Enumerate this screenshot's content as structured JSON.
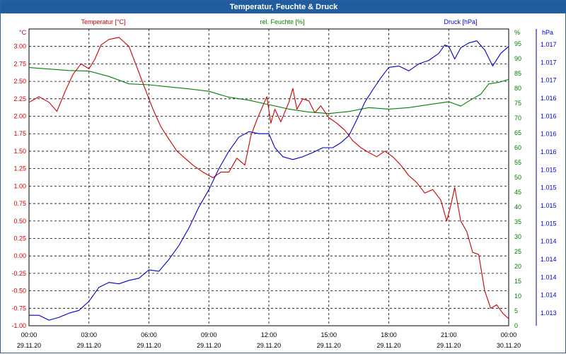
{
  "window": {
    "title": "Temperatur, Feuchte & Druck"
  },
  "chart_data": {
    "type": "line",
    "title": "Temperatur, Feuchte & Druck",
    "grid": true,
    "x_ticks": [
      {
        "time": "00:00",
        "date": "29.11.20"
      },
      {
        "time": "03:00",
        "date": "29.11.20"
      },
      {
        "time": "06:00",
        "date": "29.11.20"
      },
      {
        "time": "09:00",
        "date": "29.11.20"
      },
      {
        "time": "12:00",
        "date": "29.11.20"
      },
      {
        "time": "15:00",
        "date": "29.11.20"
      },
      {
        "time": "18:00",
        "date": "29.11.20"
      },
      {
        "time": "21:00",
        "date": "29.11.20"
      },
      {
        "time": "00:00",
        "date": "30.11.20"
      }
    ],
    "xlim_hours": [
      0,
      24
    ],
    "axes": {
      "left": {
        "unit": "°C",
        "color": "#cc0000",
        "ylim": [
          -1.0,
          3.25
        ],
        "ticks": [
          "-1.00",
          "-0.75",
          "-0.50",
          "-0.25",
          "0.00",
          "0.25",
          "0.50",
          "0.75",
          "1.00",
          "1.25",
          "1.50",
          "1.75",
          "2.00",
          "2.25",
          "2.50",
          "2.75",
          "3.00"
        ]
      },
      "mid": {
        "unit": "%",
        "color": "#008000",
        "ylim": [
          0,
          100
        ],
        "ticks": [
          "0",
          "5",
          "10",
          "15",
          "20",
          "25",
          "30",
          "35",
          "40",
          "45",
          "50",
          "55",
          "60",
          "65",
          "70",
          "75",
          "80",
          "85",
          "90",
          "95",
          "%"
        ]
      },
      "right": {
        "unit": "hPa",
        "color": "#0000cc",
        "ticks": [
          "1.013",
          "1.014",
          "1.014",
          "1.014",
          "1.014",
          "1.015",
          "1.015",
          "1.015",
          "1.015",
          "1.016",
          "1.016",
          "1.016",
          "1.016",
          "1.017",
          "1.017",
          "1.017"
        ]
      }
    },
    "series": [
      {
        "name": "Temperatur [°C]",
        "color": "#cc0000",
        "axis": "left",
        "points": [
          [
            0,
            2.2
          ],
          [
            0.5,
            2.28
          ],
          [
            1,
            2.2
          ],
          [
            1.4,
            2.07
          ],
          [
            1.8,
            2.35
          ],
          [
            2.2,
            2.6
          ],
          [
            2.6,
            2.75
          ],
          [
            3,
            2.68
          ],
          [
            3.3,
            2.82
          ],
          [
            3.6,
            3.02
          ],
          [
            4,
            3.1
          ],
          [
            4.5,
            3.13
          ],
          [
            5,
            3.0
          ],
          [
            5.4,
            2.7
          ],
          [
            5.8,
            2.4
          ],
          [
            6.2,
            2.1
          ],
          [
            6.6,
            1.85
          ],
          [
            7,
            1.67
          ],
          [
            7.4,
            1.5
          ],
          [
            7.8,
            1.4
          ],
          [
            8.2,
            1.3
          ],
          [
            8.7,
            1.2
          ],
          [
            9.2,
            1.12
          ],
          [
            9.6,
            1.2
          ],
          [
            10,
            1.2
          ],
          [
            10.4,
            1.4
          ],
          [
            10.8,
            1.3
          ],
          [
            11.1,
            1.72
          ],
          [
            11.4,
            1.95
          ],
          [
            11.7,
            2.15
          ],
          [
            11.9,
            2.28
          ],
          [
            12.1,
            1.9
          ],
          [
            12.3,
            2.1
          ],
          [
            12.6,
            1.92
          ],
          [
            13,
            2.2
          ],
          [
            13.2,
            2.4
          ],
          [
            13.4,
            2.1
          ],
          [
            13.7,
            2.25
          ],
          [
            14,
            2.22
          ],
          [
            14.3,
            2.05
          ],
          [
            14.6,
            2.15
          ],
          [
            15,
            1.98
          ],
          [
            15.4,
            1.9
          ],
          [
            15.8,
            1.8
          ],
          [
            16.2,
            1.65
          ],
          [
            16.6,
            1.55
          ],
          [
            17,
            1.48
          ],
          [
            17.4,
            1.42
          ],
          [
            17.8,
            1.5
          ],
          [
            18.2,
            1.42
          ],
          [
            18.6,
            1.3
          ],
          [
            19,
            1.15
          ],
          [
            19.4,
            1.05
          ],
          [
            19.8,
            0.9
          ],
          [
            20.2,
            0.95
          ],
          [
            20.6,
            0.8
          ],
          [
            20.9,
            0.5
          ],
          [
            21.1,
            0.72
          ],
          [
            21.3,
            0.98
          ],
          [
            21.6,
            0.5
          ],
          [
            21.9,
            0.35
          ],
          [
            22.2,
            0.05
          ],
          [
            22.5,
            0.02
          ],
          [
            22.8,
            -0.5
          ],
          [
            23.1,
            -0.75
          ],
          [
            23.4,
            -0.7
          ],
          [
            23.7,
            -0.82
          ],
          [
            24,
            -0.9
          ]
        ]
      },
      {
        "name": "rel. Feuchte [%]",
        "color": "#008000",
        "axis": "mid",
        "points": [
          [
            0,
            87
          ],
          [
            1,
            86.5
          ],
          [
            2,
            86
          ],
          [
            3,
            85.8
          ],
          [
            4,
            84
          ],
          [
            5,
            81.5
          ],
          [
            6,
            81.2
          ],
          [
            7,
            80.5
          ],
          [
            8,
            79.8
          ],
          [
            9,
            79
          ],
          [
            10,
            77
          ],
          [
            11,
            76
          ],
          [
            12,
            74.5
          ],
          [
            13,
            73
          ],
          [
            14,
            72
          ],
          [
            15,
            71.5
          ],
          [
            16,
            72.2
          ],
          [
            17,
            73.5
          ],
          [
            18,
            73
          ],
          [
            19,
            73.5
          ],
          [
            20,
            74.5
          ],
          [
            21,
            75.5
          ],
          [
            21.6,
            74
          ],
          [
            22.2,
            76.5
          ],
          [
            22.6,
            78
          ],
          [
            23,
            81.5
          ],
          [
            23.5,
            82
          ],
          [
            24,
            83
          ]
        ]
      },
      {
        "name": "Druck [hPa]",
        "color": "#0000cc",
        "axis": "right",
        "points": [
          [
            0,
            -0.85
          ],
          [
            0.5,
            -0.85
          ],
          [
            1,
            -0.92
          ],
          [
            1.5,
            -0.88
          ],
          [
            2,
            -0.82
          ],
          [
            2.5,
            -0.78
          ],
          [
            3,
            -0.65
          ],
          [
            3.5,
            -0.45
          ],
          [
            4,
            -0.38
          ],
          [
            4.5,
            -0.4
          ],
          [
            5,
            -0.35
          ],
          [
            5.5,
            -0.32
          ],
          [
            6,
            -0.2
          ],
          [
            6.5,
            -0.22
          ],
          [
            7,
            -0.05
          ],
          [
            7.5,
            0.15
          ],
          [
            8,
            0.4
          ],
          [
            8.5,
            0.7
          ],
          [
            9,
            0.95
          ],
          [
            9.5,
            1.25
          ],
          [
            10,
            1.5
          ],
          [
            10.5,
            1.7
          ],
          [
            11,
            1.78
          ],
          [
            11.5,
            1.75
          ],
          [
            12,
            1.75
          ],
          [
            12.3,
            1.55
          ],
          [
            12.7,
            1.42
          ],
          [
            13.2,
            1.38
          ],
          [
            13.7,
            1.42
          ],
          [
            14.2,
            1.48
          ],
          [
            14.7,
            1.55
          ],
          [
            15.2,
            1.55
          ],
          [
            15.6,
            1.62
          ],
          [
            16,
            1.72
          ],
          [
            16.4,
            1.95
          ],
          [
            16.8,
            2.2
          ],
          [
            17.2,
            2.38
          ],
          [
            17.6,
            2.55
          ],
          [
            18,
            2.7
          ],
          [
            18.5,
            2.72
          ],
          [
            19,
            2.65
          ],
          [
            19.5,
            2.75
          ],
          [
            20,
            2.8
          ],
          [
            20.5,
            2.9
          ],
          [
            20.8,
            3.02
          ],
          [
            21,
            3.0
          ],
          [
            21.3,
            2.82
          ],
          [
            21.6,
            2.98
          ],
          [
            22,
            3.05
          ],
          [
            22.4,
            3.08
          ],
          [
            22.8,
            2.95
          ],
          [
            23.2,
            2.72
          ],
          [
            23.6,
            2.9
          ],
          [
            24,
            3.0
          ]
        ]
      }
    ]
  }
}
